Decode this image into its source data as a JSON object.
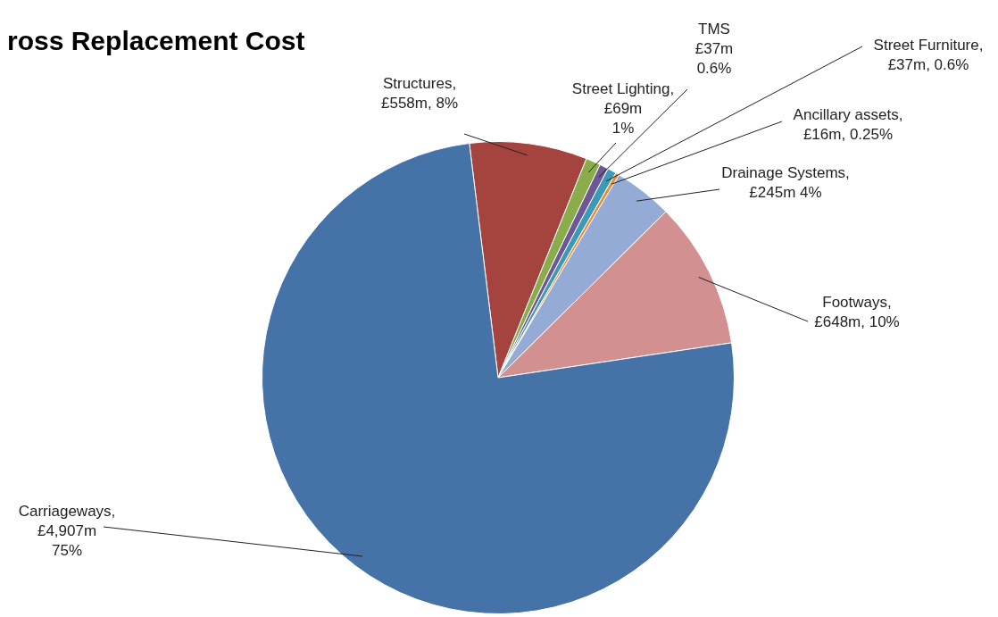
{
  "chart_data": {
    "type": "pie",
    "title": "ross Replacement Cost",
    "categories": [
      "Structures",
      "Street Lighting",
      "TMS",
      "Street Furniture",
      "Ancillary assets",
      "Drainage Systems",
      "Footways",
      "Carriageways"
    ],
    "values": [
      8,
      1,
      0.6,
      0.6,
      0.25,
      4,
      10,
      75
    ],
    "value_labels": [
      ",\n£558m, 8%",
      ",\n£69m\n1%",
      "\n£37m\n0.6%",
      ",\n£37m, 0.6%",
      ",\n£16m, 0.25%",
      ",\n£245m 4%",
      ",\n£648m, 10%",
      ",\n£4,907m\n75%"
    ],
    "colors": [
      "#a5443f",
      "#8aac4b",
      "#6e5796",
      "#3b9ab5",
      "#ec8a30",
      "#94abd5",
      "#d39090",
      "#4572a7"
    ],
    "legend": false
  }
}
